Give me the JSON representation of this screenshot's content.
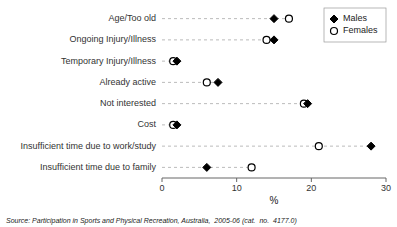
{
  "chart_data": {
    "type": "dot",
    "orientation": "horizontal",
    "categories": [
      "Age/Too old",
      "Ongoing Injury/Illness",
      "Temporary Injury/Illness",
      "Already active",
      "Not interested",
      "Cost",
      "Insufficient time due to work/study",
      "Insufficient time due to family"
    ],
    "series": [
      {
        "name": "Males",
        "color": "#000000",
        "marker": "diamond",
        "values": [
          15.0,
          15.0,
          2.0,
          7.5,
          19.5,
          2.0,
          28.0,
          6.0
        ]
      },
      {
        "name": "Females",
        "color": "#000000",
        "marker": "circle",
        "values": [
          17.0,
          14.0,
          1.5,
          6.0,
          19.0,
          1.5,
          21.0,
          12.0
        ]
      }
    ],
    "xlim": [
      0,
      30
    ],
    "xticks": [
      0,
      10,
      20,
      30
    ],
    "xlabel": "%",
    "grid": false,
    "legend": "upper right",
    "annotations": [
      "Source: Participation in Sports and Physical Recreation, Australia,  2005-06 (cat.  no.  4177.0)"
    ]
  }
}
